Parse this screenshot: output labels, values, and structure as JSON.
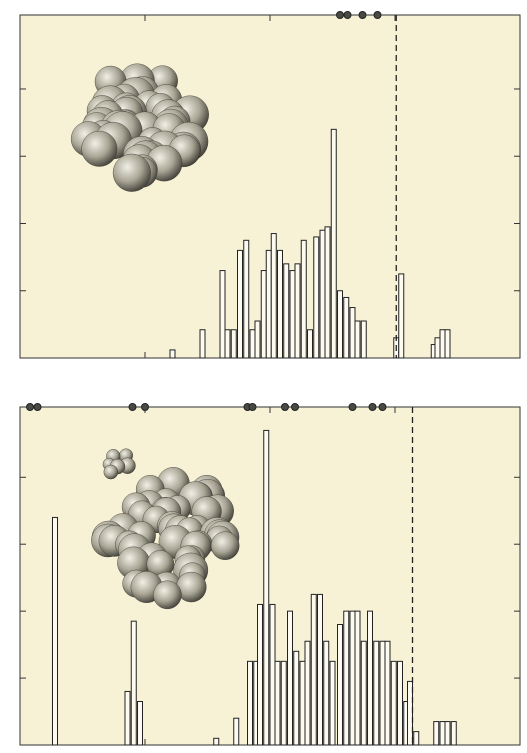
{
  "chart_data": [
    {
      "type": "bar",
      "xlim": [
        0,
        4
      ],
      "xticks": [
        1,
        2,
        3
      ],
      "ylim": [
        0,
        5.1
      ],
      "yticks": [
        1,
        2,
        3,
        4
      ],
      "color": "#fdfbef",
      "edge_color": "#222222",
      "background": "#f7f2d6",
      "reference_line": 3.01,
      "markers": [
        2.56,
        2.62,
        2.74,
        2.86
      ],
      "x": [
        1.22,
        1.46,
        1.62,
        1.66,
        1.71,
        1.76,
        1.81,
        1.86,
        1.9,
        1.95,
        1.99,
        2.03,
        2.08,
        2.13,
        2.18,
        2.22,
        2.27,
        2.32,
        2.37,
        2.42,
        2.46,
        2.51,
        2.56,
        2.61,
        2.66,
        2.7,
        2.75,
        3.01,
        3.05,
        3.31,
        3.34,
        3.38,
        3.42
      ],
      "values": [
        0.12,
        0.42,
        1.3,
        0.42,
        0.42,
        1.6,
        1.75,
        0.42,
        0.55,
        1.3,
        1.6,
        1.85,
        1.6,
        1.4,
        1.3,
        1.4,
        1.75,
        0.42,
        1.8,
        1.9,
        1.95,
        3.4,
        1.0,
        0.9,
        0.75,
        0.55,
        0.55,
        0.3,
        1.25,
        0.2,
        0.3,
        0.42,
        0.42
      ]
    },
    {
      "type": "bar",
      "xlim": [
        0,
        4
      ],
      "xticks": [
        1,
        2,
        3
      ],
      "ylim": [
        0,
        5.05
      ],
      "yticks": [
        1,
        2,
        3,
        4
      ],
      "color": "#fdfbef",
      "edge_color": "#222222",
      "background": "#f7f2d6",
      "reference_line": 3.14,
      "markers": [
        0.08,
        0.14,
        0.9,
        1.0,
        1.82,
        1.86,
        2.12,
        2.2,
        2.66,
        2.82,
        2.9
      ],
      "x": [
        0.28,
        0.86,
        0.91,
        0.96,
        1.57,
        1.73,
        1.84,
        1.89,
        1.92,
        1.97,
        2.02,
        2.06,
        2.11,
        2.16,
        2.21,
        2.26,
        2.3,
        2.35,
        2.4,
        2.45,
        2.5,
        2.56,
        2.61,
        2.66,
        2.7,
        2.75,
        2.8,
        2.85,
        2.9,
        2.94,
        2.99,
        3.04,
        3.09,
        3.12,
        3.17,
        3.33,
        3.38,
        3.42,
        3.47
      ],
      "values": [
        3.4,
        0.8,
        1.85,
        0.65,
        0.1,
        0.4,
        1.25,
        1.25,
        2.1,
        4.7,
        2.1,
        1.25,
        1.25,
        2.0,
        1.4,
        1.25,
        1.55,
        2.25,
        2.25,
        1.55,
        1.25,
        1.8,
        2.0,
        2.0,
        2.0,
        1.55,
        2.0,
        1.55,
        1.55,
        1.55,
        1.25,
        1.25,
        0.65,
        0.95,
        0.2,
        0.35,
        0.35,
        0.35,
        0.35
      ]
    }
  ]
}
